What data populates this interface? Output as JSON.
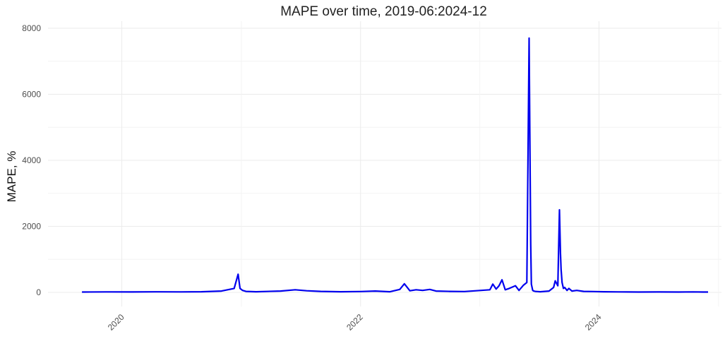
{
  "chart_data": {
    "type": "line",
    "title": "MAPE over time, 2019-06:2024-12",
    "xlabel": "",
    "ylabel": "MAPE, %",
    "x_ticks": [
      "2020",
      "2022",
      "2024"
    ],
    "y_ticks": [
      "0",
      "2000",
      "4000",
      "6000",
      "8000"
    ],
    "ylim": [
      0,
      8000
    ],
    "xlim": [
      "2019-05-20",
      "2025-01-10"
    ],
    "grid": true,
    "series": [
      {
        "color": "#0000ee",
        "x": [
          "2019-09-01",
          "2019-11-15",
          "2020-02-01",
          "2020-04-15",
          "2020-07-01",
          "2020-09-01",
          "2020-11-01",
          "2020-12-10",
          "2020-12-22",
          "2020-12-28",
          "2021-01-05",
          "2021-01-15",
          "2021-02-15",
          "2021-05-01",
          "2021-06-15",
          "2021-07-20",
          "2021-09-01",
          "2021-11-01",
          "2022-01-01",
          "2022-02-15",
          "2022-04-01",
          "2022-05-01",
          "2022-05-15",
          "2022-06-01",
          "2022-06-20",
          "2022-07-10",
          "2022-08-01",
          "2022-08-20",
          "2022-10-01",
          "2022-11-15",
          "2023-01-05",
          "2023-02-01",
          "2023-02-10",
          "2023-02-20",
          "2023-03-01",
          "2023-03-10",
          "2023-03-20",
          "2023-04-01",
          "2023-04-20",
          "2023-05-01",
          "2023-05-15",
          "2023-05-25",
          "2023-06-01",
          "2023-06-04",
          "2023-06-06",
          "2023-06-08",
          "2023-06-12",
          "2023-06-15",
          "2023-06-20",
          "2023-07-05",
          "2023-08-01",
          "2023-08-15",
          "2023-08-20",
          "2023-08-28",
          "2023-09-02",
          "2023-09-05",
          "2023-09-07",
          "2023-09-10",
          "2023-09-14",
          "2023-09-18",
          "2023-09-25",
          "2023-10-01",
          "2023-10-10",
          "2023-10-25",
          "2023-11-15",
          "2023-12-15",
          "2024-01-15",
          "2024-03-01",
          "2024-05-01",
          "2024-07-01",
          "2024-09-01",
          "2024-10-15",
          "2024-11-15",
          "2024-11-30"
        ],
        "y": [
          10,
          15,
          12,
          18,
          14,
          20,
          40,
          120,
          550,
          120,
          60,
          30,
          20,
          40,
          80,
          50,
          30,
          20,
          25,
          40,
          20,
          90,
          260,
          50,
          80,
          60,
          90,
          40,
          30,
          25,
          60,
          80,
          250,
          100,
          200,
          380,
          80,
          120,
          200,
          60,
          220,
          300,
          7700,
          3800,
          1450,
          250,
          60,
          40,
          30,
          20,
          40,
          150,
          350,
          200,
          2500,
          1200,
          700,
          300,
          120,
          150,
          60,
          120,
          40,
          60,
          30,
          25,
          20,
          15,
          10,
          12,
          10,
          15,
          10,
          10
        ]
      }
    ]
  }
}
